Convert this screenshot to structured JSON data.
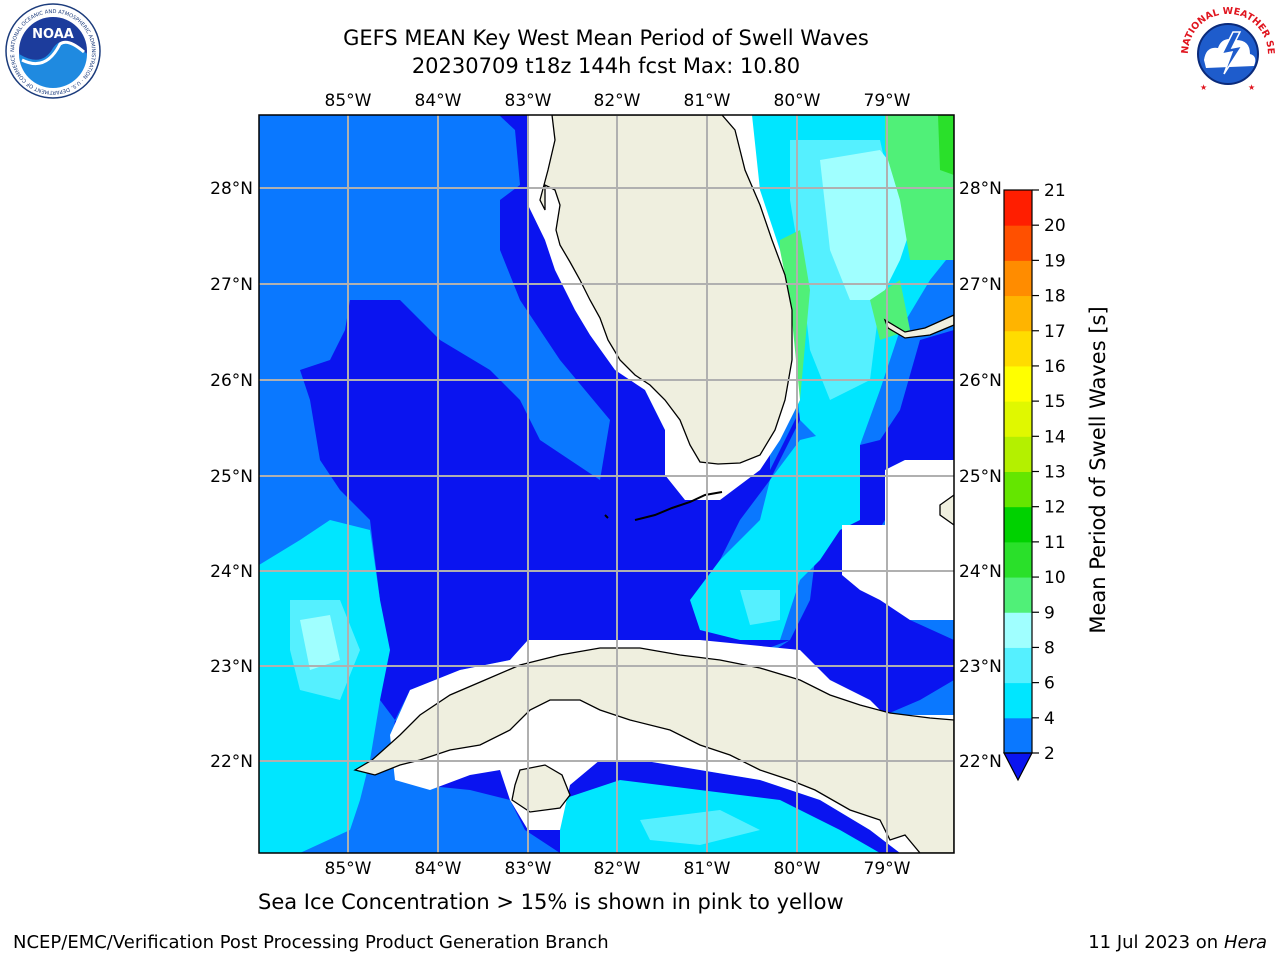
{
  "header": {
    "title_line1": "GEFS MEAN Key West Mean Period of Swell Waves",
    "title_line2": "20230709 t18z 144h fcst   Max: 10.80"
  },
  "logos": {
    "left": {
      "name": "noaa-logo",
      "text": "NOAA",
      "ring_text": "NATIONAL OCEANIC AND ATMOSPHERIC ADMINISTRATION · U.S. DEPARTMENT OF COMMERCE"
    },
    "right": {
      "name": "nws-logo",
      "ring_text": "NATIONAL WEATHER SERVICE"
    }
  },
  "map": {
    "lon_labels": [
      "85°W",
      "84°W",
      "83°W",
      "82°W",
      "81°W",
      "80°W",
      "79°W"
    ],
    "lat_labels": [
      "28°N",
      "27°N",
      "26°N",
      "25°N",
      "24°N",
      "23°N",
      "22°N"
    ],
    "lon_range": [
      -86.0,
      -78.3
    ],
    "lat_range": [
      21.0,
      28.8
    ]
  },
  "colorbar": {
    "label": "Mean Period of Swell Waves [s]",
    "ticks": [
      "2",
      "4",
      "6",
      "8",
      "9",
      "10",
      "11",
      "12",
      "13",
      "14",
      "15",
      "16",
      "17",
      "18",
      "19",
      "20",
      "21"
    ],
    "colors": [
      "#0a14f0",
      "#0a78ff",
      "#00e6ff",
      "#55f0ff",
      "#a0ffff",
      "#50f078",
      "#2ae02a",
      "#00d200",
      "#64e600",
      "#b4f000",
      "#e0f800",
      "#ffff00",
      "#ffdc00",
      "#ffb400",
      "#ff8c00",
      "#ff5000",
      "#ff1e00",
      "#ff0000"
    ]
  },
  "subfooter": "Sea Ice Concentration > 15% is shown in pink to yellow",
  "footer": {
    "left": "NCEP/EMC/Verification Post Processing Product Generation Branch",
    "right_date": "11 Jul 2023 on ",
    "right_host": "Hera"
  }
}
